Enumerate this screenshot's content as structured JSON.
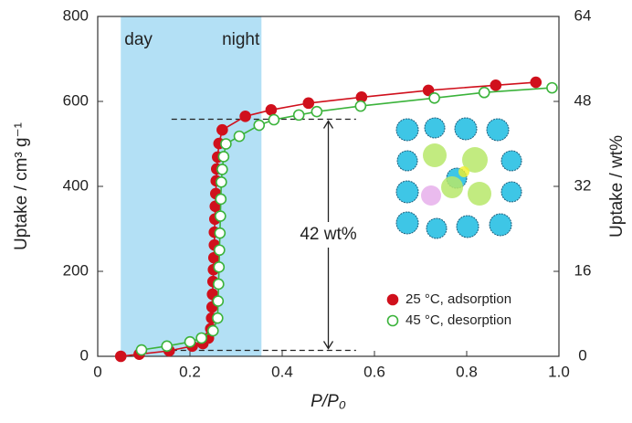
{
  "chart_data": {
    "type": "line",
    "x_label": "P/P₀",
    "y_label": "Uptake / cm³ g⁻¹",
    "y2_label": "Uptake / wt%",
    "xlim": [
      0,
      1
    ],
    "xticks": [
      0,
      0.2,
      0.4,
      0.6,
      0.8,
      {
        "value": 1,
        "label": "1.0"
      }
    ],
    "ylim": [
      0,
      800
    ],
    "yticks": [
      0,
      200,
      400,
      600,
      800
    ],
    "y2lim": [
      0,
      64
    ],
    "y2ticks": [
      0,
      16,
      32,
      48,
      64
    ],
    "shaded_x": [
      0.05,
      0.355
    ],
    "shade_color": "#b3e0f5",
    "shade_labels": [
      "day",
      "night"
    ],
    "dashed_y": [
      14,
      558
    ],
    "annotation": "42 wt%",
    "legend": "lower right",
    "series": [
      {
        "name": "25 °C, adsorption",
        "color": "#d0101c",
        "filled": true,
        "x": [
          0.05,
          0.09,
          0.155,
          0.205,
          0.228,
          0.24,
          0.245,
          0.247,
          0.248,
          0.249,
          0.25,
          0.251,
          0.252,
          0.253,
          0.253,
          0.254,
          0.255,
          0.256,
          0.257,
          0.258,
          0.26,
          0.263,
          0.27,
          0.32,
          0.376,
          0.457,
          0.572,
          0.717,
          0.863,
          0.95
        ],
        "values": [
          0,
          5,
          13,
          24,
          30,
          43,
          65,
          90,
          116,
          146,
          176,
          204,
          232,
          262,
          292,
          323,
          353,
          383,
          413,
          441,
          469,
          501,
          533,
          565,
          580,
          596,
          610,
          626,
          638,
          645
        ]
      },
      {
        "name": "45 °C, desorption",
        "color": "#3bb33b",
        "filled": false,
        "x": [
          0.095,
          0.15,
          0.2,
          0.225,
          0.25,
          0.26,
          0.261,
          0.262,
          0.263,
          0.264,
          0.265,
          0.266,
          0.267,
          0.268,
          0.27,
          0.273,
          0.278,
          0.307,
          0.35,
          0.382,
          0.436,
          0.475,
          0.57,
          0.73,
          0.838,
          0.985
        ],
        "values": [
          15,
          24,
          34,
          43,
          60,
          90,
          130,
          170,
          210,
          250,
          290,
          330,
          370,
          410,
          440,
          470,
          500,
          518,
          544,
          557,
          568,
          576,
          589,
          608,
          621,
          632
        ]
      }
    ]
  }
}
